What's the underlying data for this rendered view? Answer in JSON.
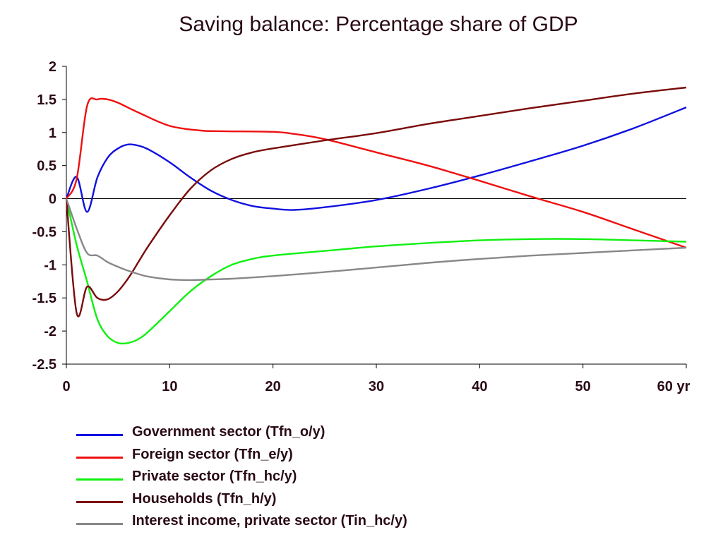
{
  "chart_data": {
    "type": "line",
    "title": "Saving balance: Percentage share of GDP",
    "xlabel": "",
    "ylabel": "",
    "xlim": [
      0,
      60
    ],
    "ylim": [
      -2.5,
      2
    ],
    "x_ticks": [
      0,
      10,
      20,
      30,
      40,
      50,
      60
    ],
    "x_tick_labels": [
      "0",
      "10",
      "20",
      "30",
      "40",
      "50",
      "60 yr"
    ],
    "y_ticks": [
      2,
      1.5,
      1,
      0.5,
      0,
      -0.5,
      -1,
      -1.5,
      -2,
      -2.5
    ],
    "y_tick_labels": [
      "2",
      "1.5",
      "1",
      "0.5",
      "0",
      "-0.5",
      "-1",
      "-1.5",
      "-2",
      "-2.5"
    ],
    "grid": false,
    "zero_line": true,
    "legend_position": "bottom",
    "series": [
      {
        "name": "Government sector (Tfn_o/y)",
        "color": "#1010e0",
        "x": [
          0,
          1,
          2,
          3,
          4,
          5,
          6,
          7,
          8,
          10,
          12,
          14,
          16,
          18,
          20,
          22,
          25,
          30,
          35,
          40,
          45,
          50,
          55,
          60
        ],
        "y": [
          0,
          0.33,
          -0.2,
          0.32,
          0.62,
          0.76,
          0.82,
          0.8,
          0.74,
          0.55,
          0.32,
          0.12,
          -0.02,
          -0.11,
          -0.15,
          -0.17,
          -0.13,
          -0.02,
          0.15,
          0.35,
          0.57,
          0.8,
          1.07,
          1.38
        ]
      },
      {
        "name": "Foreign sector (Tfn_e/y)",
        "color": "#ee1010",
        "x": [
          0,
          1,
          2,
          3,
          4,
          5,
          7,
          10,
          13,
          15,
          20,
          22,
          25,
          30,
          35,
          40,
          45,
          50,
          55,
          60
        ],
        "y": [
          0,
          0.3,
          1.4,
          1.5,
          1.5,
          1.45,
          1.3,
          1.1,
          1.03,
          1.02,
          1.01,
          0.98,
          0.9,
          0.7,
          0.5,
          0.27,
          0.03,
          -0.2,
          -0.47,
          -0.74
        ]
      },
      {
        "name": "Private sector (Tfn_hc/y)",
        "color": "#10f010",
        "x": [
          0,
          1,
          2,
          3,
          4,
          5,
          6,
          7,
          8,
          10,
          12,
          14,
          16,
          18,
          20,
          25,
          30,
          35,
          40,
          45,
          50,
          55,
          60
        ],
        "y": [
          0,
          -0.7,
          -1.25,
          -1.82,
          -2.08,
          -2.18,
          -2.18,
          -2.12,
          -2.0,
          -1.7,
          -1.4,
          -1.17,
          -1.0,
          -0.91,
          -0.86,
          -0.79,
          -0.72,
          -0.67,
          -0.63,
          -0.61,
          -0.61,
          -0.63,
          -0.65
        ]
      },
      {
        "name": "Households (Tfn_h/y)",
        "color": "#7a0a0a",
        "x": [
          0,
          1,
          2,
          3,
          4,
          5,
          6,
          7,
          8,
          10,
          12,
          14,
          16,
          18,
          20,
          25,
          30,
          35,
          40,
          45,
          50,
          55,
          60
        ],
        "y": [
          0,
          -1.73,
          -1.33,
          -1.5,
          -1.52,
          -1.4,
          -1.2,
          -0.95,
          -0.7,
          -0.25,
          0.15,
          0.43,
          0.6,
          0.7,
          0.76,
          0.88,
          0.99,
          1.13,
          1.25,
          1.37,
          1.48,
          1.59,
          1.68
        ]
      },
      {
        "name": "Interest income, private sector (Tin_hc/y)",
        "color": "#888888",
        "x": [
          0,
          1,
          2,
          3,
          4,
          5,
          6,
          7,
          8,
          10,
          12,
          14,
          16,
          18,
          20,
          25,
          30,
          35,
          40,
          45,
          50,
          55,
          60
        ],
        "y": [
          0,
          -0.45,
          -0.82,
          -0.86,
          -0.96,
          -1.03,
          -1.09,
          -1.14,
          -1.18,
          -1.22,
          -1.23,
          -1.22,
          -1.21,
          -1.19,
          -1.17,
          -1.11,
          -1.04,
          -0.97,
          -0.91,
          -0.86,
          -0.82,
          -0.78,
          -0.74
        ]
      }
    ]
  }
}
